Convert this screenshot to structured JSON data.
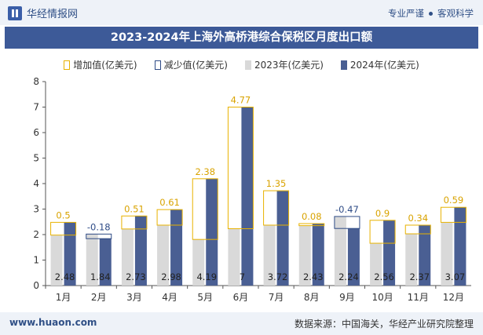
{
  "header": {
    "brand": "华经情报网",
    "tag_left": "专业严谨",
    "tag_right": "客观科学"
  },
  "title": "2023-2024年上海外高桥港综合保税区月度出口额",
  "legend": {
    "increase": "增加值(亿美元)",
    "decrease": "减少值(亿美元)",
    "y2023": "2023年(亿美元)",
    "y2024": "2024年(亿美元)"
  },
  "footer": {
    "url": "www.huaon.com",
    "source": "数据来源：中国海关，华经产业研究院整理"
  },
  "colors": {
    "y2023": "#d9d9d9",
    "y2024": "#4a5f93",
    "increase": "#e8b200",
    "decrease": "#2e4b86",
    "title_bg": "#3d5a98"
  },
  "chart_data": {
    "type": "bar",
    "categories": [
      "1月",
      "2月",
      "3月",
      "4月",
      "5月",
      "6月",
      "7月",
      "8月",
      "9月",
      "10月",
      "11月",
      "12月"
    ],
    "series": [
      {
        "name": "2023年(亿美元)",
        "values": [
          1.98,
          2.02,
          2.22,
          2.37,
          1.81,
          2.23,
          2.37,
          2.35,
          2.71,
          1.66,
          2.03,
          2.48
        ]
      },
      {
        "name": "2024年(亿美元)",
        "values": [
          2.48,
          1.84,
          2.73,
          2.98,
          4.19,
          7,
          3.72,
          2.43,
          2.24,
          2.56,
          2.37,
          3.07
        ]
      }
    ],
    "change": [
      "0.5",
      "-0.18",
      "0.51",
      "0.61",
      "2.38",
      "4.77",
      "1.35",
      "0.08",
      "-0.47",
      "0.9",
      "0.34",
      "0.59"
    ],
    "value_labels": [
      "2.48",
      "1.84",
      "2.73",
      "2.98",
      "4.19",
      "7",
      "3.72",
      "2.43",
      "2.24",
      "2.56",
      "2.37",
      "3.07"
    ],
    "y_ticks": [
      "0",
      "1",
      "2",
      "3",
      "4",
      "5",
      "6",
      "7",
      "8"
    ],
    "ylim": [
      0,
      8
    ],
    "grid": false,
    "legend_position": "top"
  }
}
